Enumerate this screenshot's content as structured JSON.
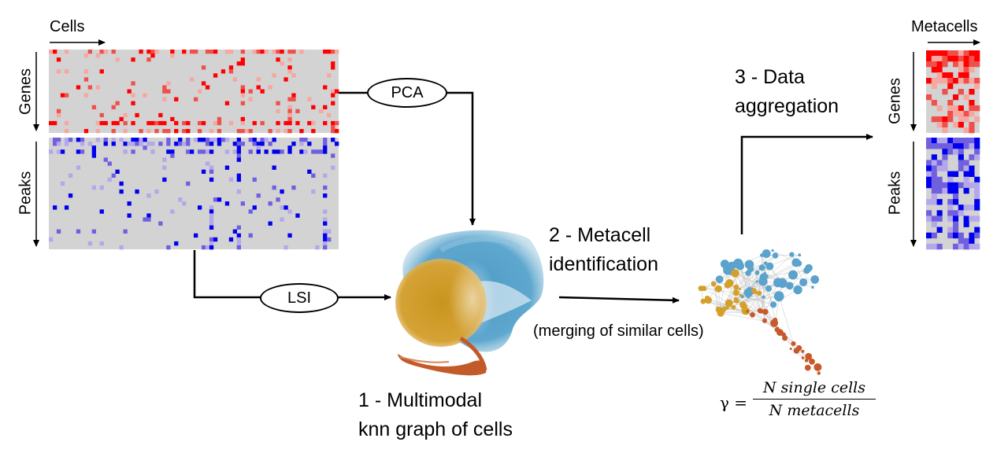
{
  "labels": {
    "cells": "Cells",
    "metacells": "Metacells",
    "genes_left": "Genes",
    "peaks_left": "Peaks",
    "genes_right": "Genes",
    "peaks_right": "Peaks",
    "pca": "PCA",
    "lsi": "LSI"
  },
  "steps": {
    "step1_line1": "1 - Multimodal",
    "step1_line2": "knn graph of cells",
    "step2_line1": "2 - Metacell",
    "step2_line2": "identification",
    "step2_note": "(merging of similar cells)",
    "step3_line1": "3 - Data",
    "step3_line2": "aggregation"
  },
  "formula": {
    "symbol": "γ =",
    "numerator": "N single cells",
    "denominator": "N metacells"
  },
  "colors": {
    "matrix_background": "#d3d3d3",
    "genes_strong": "#ff0000",
    "genes_mid": "#f0504a",
    "genes_light": "#f5a7a0",
    "peaks_strong": "#0000ee",
    "peaks_mid": "#7060e0",
    "peaks_light": "#b4a8ea",
    "cluster_blue": "#5ba3cc",
    "cluster_gold": "#d4a02a",
    "cluster_orange": "#c8592a"
  }
}
